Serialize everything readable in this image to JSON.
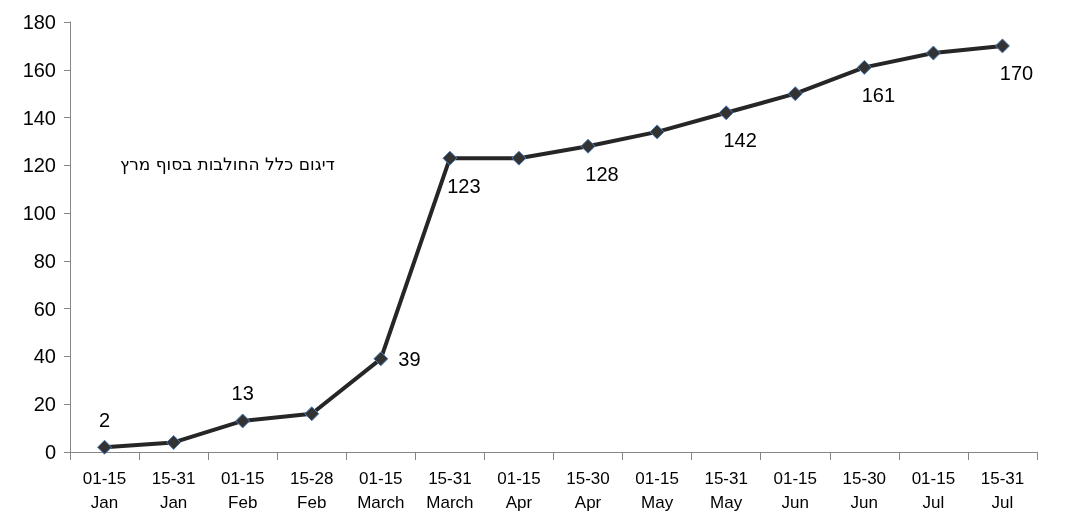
{
  "chart_data": {
    "type": "line",
    "categories": [
      "01-15\nJan",
      "15-31\nJan",
      "01-15\nFeb",
      "15-28\nFeb",
      "01-15\nMarch",
      "15-31\nMarch",
      "01-15\nApr",
      "15-30\nApr",
      "01-15\nMay",
      "15-31\nMay",
      "01-15\nJun",
      "15-30\nJun",
      "01-15\nJul",
      "15-31\nJul"
    ],
    "series": [
      {
        "color": "#262626",
        "values": [
          2,
          4,
          13,
          16,
          39,
          123,
          123,
          128,
          134,
          142,
          150,
          161,
          167,
          170
        ],
        "value_labels": [
          "2",
          null,
          "13",
          null,
          "39",
          "123",
          null,
          "128",
          null,
          "142",
          null,
          "161",
          null,
          "170"
        ]
      }
    ],
    "ylim": [
      0,
      180
    ],
    "yticks": [
      0,
      20,
      40,
      60,
      80,
      100,
      120,
      140,
      160,
      180
    ],
    "grid": false,
    "marker": "diamond",
    "line_style": "solid",
    "annotations": [
      "דיגום כלל החולבות בסוף מרץ"
    ]
  }
}
